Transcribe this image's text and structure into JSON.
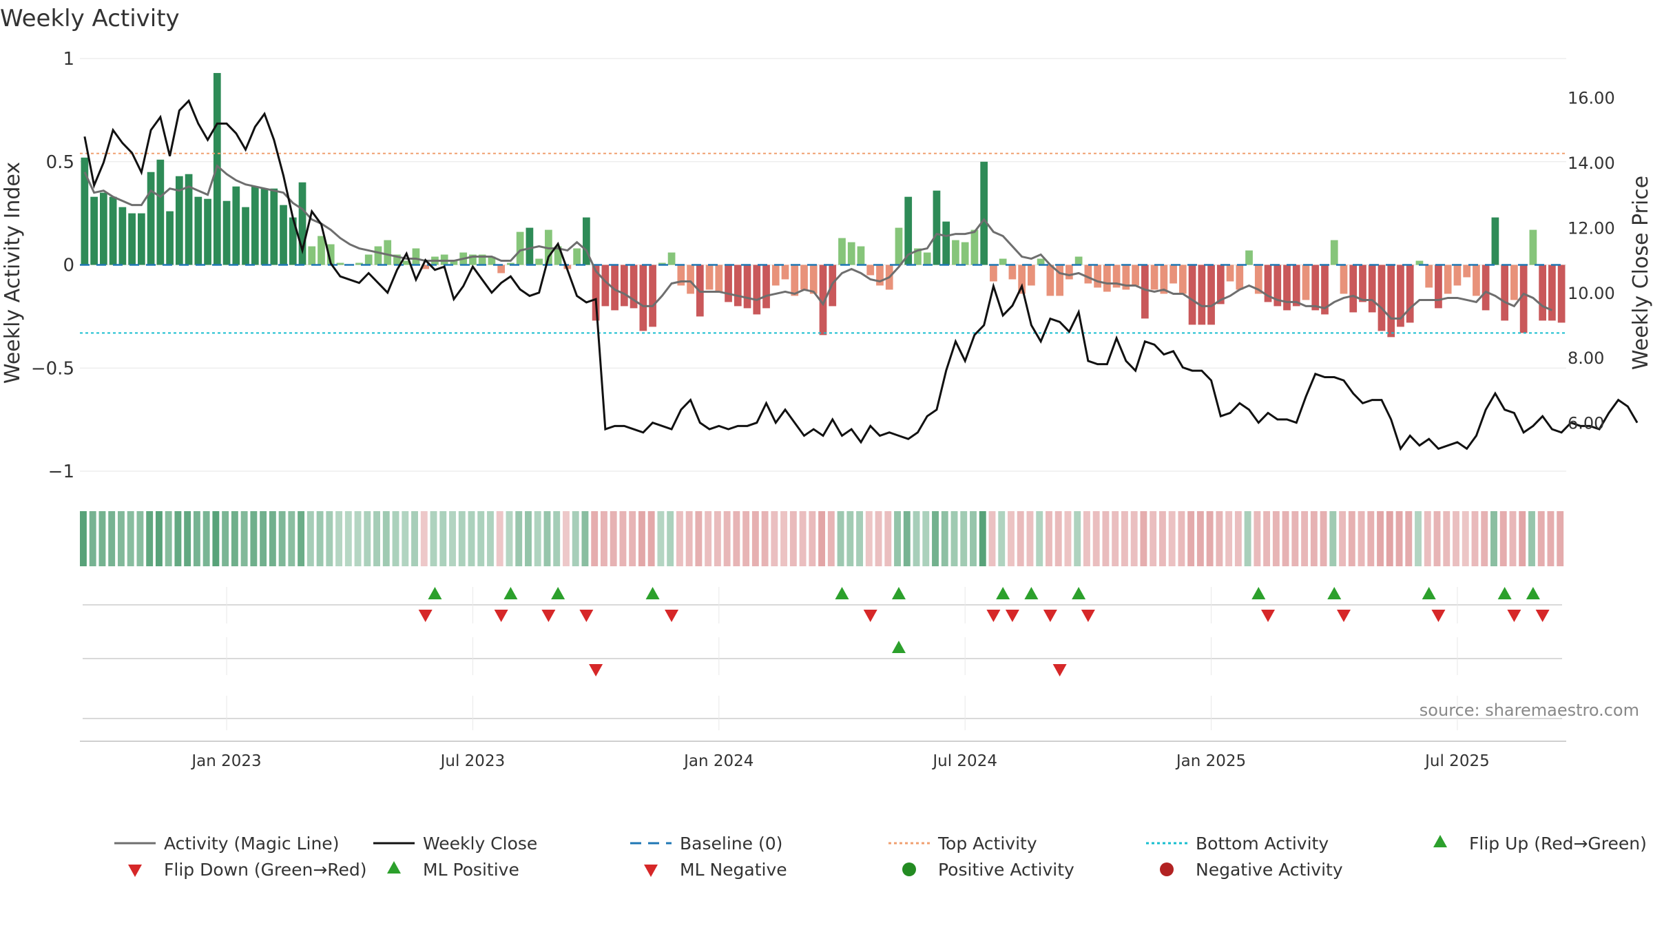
{
  "chart_data": {
    "type": "bar",
    "title": "Weekly Activity",
    "ylabel_left": "Weekly Activity Index",
    "ylabel_right": "Weekly Close Price",
    "left_axis": {
      "ylim": [
        -1.08,
        1.0
      ],
      "ticks": [
        1,
        0.5,
        0,
        -0.5,
        -1
      ],
      "tick_labels": [
        "1",
        "0.5",
        "0",
        "−0.5",
        "−1"
      ]
    },
    "right_axis": {
      "ylim": [
        4.0,
        17.2
      ],
      "ticks": [
        16,
        14,
        12,
        10,
        8,
        6
      ],
      "tick_labels": [
        "16.00",
        "14.00",
        "12.00",
        "10.00",
        "8.00",
        "6.00"
      ]
    },
    "x_axis": {
      "start_week": 0,
      "end_week": 158,
      "tick_weeks": [
        15,
        41,
        67,
        93,
        119,
        145
      ],
      "tick_labels": [
        "Jan 2023",
        "Jul 2023",
        "Jan 2024",
        "Jul 2024",
        "Jan 2025",
        "Jul 2025"
      ]
    },
    "reference_lines": {
      "baseline": 0,
      "top_activity": 0.54,
      "bottom_activity": -0.33
    },
    "activity_index": [
      0.52,
      0.33,
      0.35,
      0.33,
      0.28,
      0.25,
      0.25,
      0.45,
      0.51,
      0.26,
      0.43,
      0.44,
      0.33,
      0.32,
      0.93,
      0.31,
      0.38,
      0.28,
      0.38,
      0.37,
      0.37,
      0.29,
      0.23,
      0.4,
      0.09,
      0.14,
      0.1,
      0.01,
      0.0,
      0.01,
      0.05,
      0.09,
      0.12,
      0.05,
      0.02,
      0.08,
      -0.02,
      0.04,
      0.05,
      0.02,
      0.06,
      0.05,
      0.05,
      0.04,
      -0.04,
      0.01,
      0.16,
      0.18,
      0.03,
      0.17,
      0.09,
      -0.02,
      0.08,
      0.23,
      -0.27,
      -0.2,
      -0.22,
      -0.2,
      -0.21,
      -0.32,
      -0.3,
      0.01,
      0.06,
      -0.1,
      -0.14,
      -0.25,
      -0.12,
      -0.13,
      -0.18,
      -0.2,
      -0.21,
      -0.24,
      -0.21,
      -0.1,
      -0.07,
      -0.15,
      -0.12,
      -0.14,
      -0.34,
      -0.2,
      0.13,
      0.11,
      0.09,
      -0.05,
      -0.1,
      -0.12,
      0.18,
      0.33,
      0.08,
      0.06,
      0.36,
      0.21,
      0.12,
      0.11,
      0.17,
      0.5,
      -0.08,
      0.03,
      -0.07,
      -0.14,
      -0.1,
      0.03,
      -0.15,
      -0.15,
      -0.07,
      0.04,
      -0.09,
      -0.11,
      -0.13,
      -0.11,
      -0.12,
      -0.1,
      -0.26,
      -0.12,
      -0.14,
      -0.09,
      -0.14,
      -0.29,
      -0.29,
      -0.29,
      -0.19,
      -0.08,
      -0.12,
      0.07,
      -0.14,
      -0.18,
      -0.2,
      -0.22,
      -0.2,
      -0.17,
      -0.22,
      -0.24,
      0.12,
      -0.14,
      -0.23,
      -0.18,
      -0.23,
      -0.32,
      -0.35,
      -0.3,
      -0.28,
      0.02,
      -0.11,
      -0.21,
      -0.14,
      -0.1,
      -0.06,
      -0.15,
      -0.22,
      0.23,
      -0.27,
      -0.17,
      -0.33,
      0.17,
      -0.27,
      -0.27,
      -0.28
    ],
    "magic_line": [
      0.45,
      0.35,
      0.36,
      0.33,
      0.31,
      0.29,
      0.29,
      0.36,
      0.33,
      0.37,
      0.36,
      0.38,
      0.36,
      0.34,
      0.48,
      0.44,
      0.41,
      0.39,
      0.38,
      0.37,
      0.36,
      0.35,
      0.3,
      0.27,
      0.22,
      0.2,
      0.17,
      0.13,
      0.1,
      0.08,
      0.07,
      0.06,
      0.05,
      0.04,
      0.03,
      0.03,
      0.02,
      0.02,
      0.02,
      0.02,
      0.03,
      0.04,
      0.04,
      0.04,
      0.02,
      0.02,
      0.07,
      0.08,
      0.09,
      0.08,
      0.08,
      0.07,
      0.11,
      0.07,
      -0.03,
      -0.08,
      -0.12,
      -0.14,
      -0.17,
      -0.2,
      -0.2,
      -0.15,
      -0.09,
      -0.08,
      -0.08,
      -0.13,
      -0.13,
      -0.13,
      -0.14,
      -0.15,
      -0.16,
      -0.17,
      -0.15,
      -0.14,
      -0.13,
      -0.14,
      -0.12,
      -0.13,
      -0.19,
      -0.09,
      -0.04,
      -0.02,
      -0.04,
      -0.07,
      -0.08,
      -0.06,
      -0.01,
      0.05,
      0.07,
      0.08,
      0.15,
      0.14,
      0.15,
      0.15,
      0.16,
      0.22,
      0.16,
      0.14,
      0.09,
      0.04,
      0.03,
      0.05,
      0.0,
      -0.04,
      -0.05,
      -0.04,
      -0.06,
      -0.08,
      -0.09,
      -0.09,
      -0.1,
      -0.1,
      -0.12,
      -0.13,
      -0.12,
      -0.14,
      -0.14,
      -0.17,
      -0.2,
      -0.2,
      -0.17,
      -0.15,
      -0.12,
      -0.1,
      -0.12,
      -0.15,
      -0.17,
      -0.18,
      -0.18,
      -0.2,
      -0.2,
      -0.21,
      -0.18,
      -0.16,
      -0.15,
      -0.17,
      -0.17,
      -0.21,
      -0.26,
      -0.26,
      -0.21,
      -0.17,
      -0.17,
      -0.17,
      -0.16,
      -0.16,
      -0.17,
      -0.18,
      -0.13,
      -0.15,
      -0.18,
      -0.2,
      -0.14,
      -0.16,
      -0.2,
      -0.22
    ],
    "weekly_close": [
      14.8,
      13.3,
      14.0,
      15.0,
      14.6,
      14.3,
      13.7,
      15.0,
      15.4,
      14.2,
      15.6,
      15.9,
      15.2,
      14.7,
      15.2,
      15.2,
      14.9,
      14.4,
      15.1,
      15.5,
      14.7,
      13.6,
      12.3,
      11.3,
      12.5,
      12.1,
      10.9,
      10.5,
      10.4,
      10.3,
      10.6,
      10.3,
      10.0,
      10.7,
      11.2,
      10.4,
      11.0,
      10.7,
      10.8,
      9.8,
      10.2,
      10.8,
      10.4,
      10.0,
      10.3,
      10.5,
      10.1,
      9.9,
      10.0,
      11.1,
      11.5,
      10.7,
      9.9,
      9.7,
      9.8,
      5.8,
      5.9,
      5.9,
      5.8,
      5.7,
      6.0,
      5.9,
      5.8,
      6.4,
      6.7,
      6.0,
      5.8,
      5.9,
      5.8,
      5.9,
      5.9,
      6.0,
      6.6,
      6.0,
      6.4,
      6.0,
      5.6,
      5.8,
      5.6,
      6.1,
      5.6,
      5.8,
      5.4,
      5.9,
      5.6,
      5.7,
      5.6,
      5.5,
      5.7,
      6.2,
      6.4,
      7.6,
      8.5,
      7.9,
      8.7,
      9.0,
      10.2,
      9.3,
      9.6,
      10.2,
      9.0,
      8.5,
      9.2,
      9.1,
      8.8,
      9.4,
      7.9,
      7.8,
      7.8,
      8.6,
      7.9,
      7.6,
      8.5,
      8.4,
      8.1,
      8.2,
      7.7,
      7.6,
      7.6,
      7.3,
      6.2,
      6.3,
      6.6,
      6.4,
      6.0,
      6.3,
      6.1,
      6.1,
      6.0,
      6.8,
      7.5,
      7.4,
      7.4,
      7.3,
      6.9,
      6.6,
      6.7,
      6.7,
      6.1,
      5.2,
      5.6,
      5.3,
      5.5,
      5.2,
      5.3,
      5.4,
      5.2,
      5.6,
      6.4,
      6.9,
      6.4,
      6.3,
      5.7,
      5.9,
      6.2,
      5.8,
      5.7,
      6.0,
      5.9,
      5.9,
      5.8,
      6.3,
      6.7,
      6.5,
      6.0
    ],
    "flip_up_weeks": [
      37,
      45,
      50,
      60,
      80,
      86,
      97,
      100,
      105,
      124,
      132,
      142,
      150,
      153
    ],
    "flip_down_weeks": [
      36,
      44,
      49,
      53,
      62,
      83,
      96,
      98,
      102,
      106,
      125,
      133,
      143,
      151,
      154
    ],
    "ml_positive_weeks": [
      86
    ],
    "ml_negative_weeks": [
      54,
      103
    ],
    "source": "source: sharemaestro.com",
    "colors": {
      "bar_pos_strong": "#2e8b57",
      "bar_pos_weak": "#86c57a",
      "bar_neg_strong": "#c9585a",
      "bar_neg_weak": "#e8927a",
      "magic_line": "#6e6e6e",
      "weekly_close": "#111111",
      "baseline": "#1f77b4",
      "top_activity": "#f0a070",
      "bottom_activity": "#17becf",
      "marker_green": "#2ca02c",
      "marker_red": "#d62728",
      "positive_dot": "#238b22",
      "negative_dot": "#b22222"
    },
    "legend": [
      {
        "label": "Activity (Magic Line)",
        "kind": "line-gray"
      },
      {
        "label": "Weekly Close",
        "kind": "line-black"
      },
      {
        "label": "Baseline (0)",
        "kind": "dash-blue"
      },
      {
        "label": "Top Activity",
        "kind": "dot-orange"
      },
      {
        "label": "Bottom Activity",
        "kind": "dot-cyan"
      },
      {
        "label": "Flip Up (Red→Green)",
        "kind": "tri-up-green"
      },
      {
        "label": "Flip Down (Green→Red)",
        "kind": "tri-down-red"
      },
      {
        "label": "ML Positive",
        "kind": "tri-up-green"
      },
      {
        "label": "ML Negative",
        "kind": "tri-down-red"
      },
      {
        "label": "Positive Activity",
        "kind": "dot-green"
      },
      {
        "label": "Negative Activity",
        "kind": "dot-red"
      }
    ]
  }
}
